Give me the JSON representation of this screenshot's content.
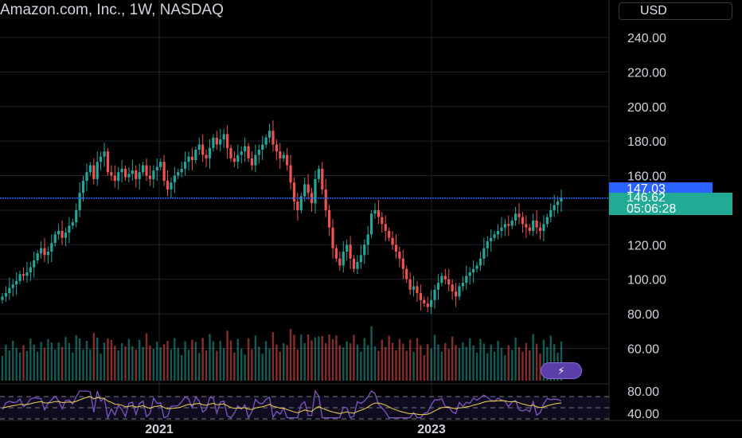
{
  "header": {
    "title": "Amazon.com, Inc., 1W, NASDAQ",
    "currency_button": "USD"
  },
  "price_scale": {
    "last_price": "147.03",
    "current_price": "146.62",
    "countdown": "05:06:28",
    "last_price_color": "#2962ff",
    "current_color": "#22ab94"
  },
  "indicator_scale": {
    "ticks": [
      "80.00",
      "40.00"
    ]
  },
  "colors": {
    "up": "#26a69a",
    "down": "#ef5350",
    "rsi_line": "#7e57c2",
    "rsi_ma": "#f2d64f",
    "grid": "#1e222d"
  },
  "toolbar": {
    "flash_icon": "lightning-icon"
  },
  "chart_data": {
    "type": "candlestick",
    "timeframe": "1W",
    "y_axis_ticks": [
      240,
      220,
      200,
      180,
      160,
      140,
      120,
      100,
      80,
      60
    ],
    "y_axis_labels": [
      "240.00",
      "220.00",
      "200.00",
      "180.00",
      "160.00",
      "120.00",
      "100.00",
      "80.00",
      "60.00"
    ],
    "ylim": [
      50,
      248
    ],
    "x_axis_labels": [
      "2021",
      "2023"
    ],
    "last_price_line": 147.03,
    "close_series": [
      90,
      92,
      95,
      97,
      99,
      103,
      102,
      104,
      107,
      111,
      115,
      118,
      114,
      116,
      121,
      126,
      128,
      124,
      127,
      131,
      133,
      140,
      150,
      157,
      162,
      166,
      158,
      168,
      171,
      174,
      162,
      160,
      157,
      162,
      164,
      159,
      161,
      163,
      158,
      162,
      166,
      160,
      158,
      163,
      165,
      168,
      157,
      152,
      156,
      160,
      162,
      164,
      168,
      171,
      169,
      175,
      178,
      172,
      170,
      176,
      182,
      178,
      181,
      184,
      176,
      170,
      168,
      172,
      174,
      177,
      170,
      166,
      172,
      175,
      178,
      182,
      186,
      178,
      174,
      170,
      172,
      166,
      156,
      145,
      140,
      148,
      155,
      150,
      144,
      158,
      164,
      152,
      140,
      130,
      118,
      112,
      108,
      116,
      120,
      112,
      106,
      110,
      114,
      120,
      126,
      138,
      140,
      136,
      132,
      128,
      124,
      120,
      116,
      112,
      106,
      100,
      94,
      96,
      92,
      88,
      86,
      84,
      88,
      94,
      98,
      102,
      100,
      97,
      93,
      90,
      96,
      98,
      102,
      104,
      106,
      108,
      112,
      118,
      122,
      124,
      126,
      128,
      130,
      132,
      131,
      134,
      138,
      136,
      132,
      130,
      128,
      134,
      130,
      128,
      132,
      136,
      140,
      143,
      145,
      147.03
    ],
    "rsi_scale": [
      30,
      90
    ]
  }
}
